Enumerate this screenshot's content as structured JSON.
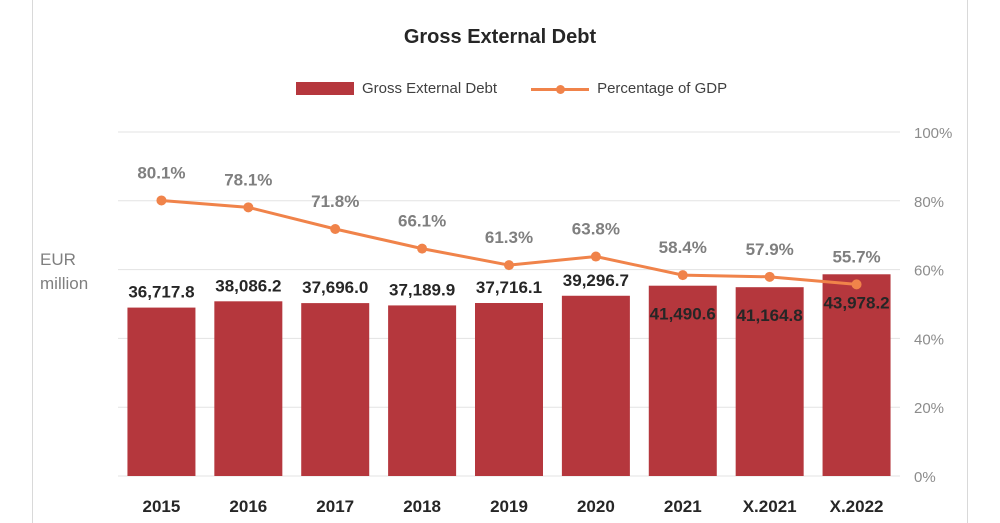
{
  "chart_data": {
    "type": "bar",
    "title": "Gross External Debt",
    "y_unit_label": "EUR million",
    "categories": [
      "2015",
      "2016",
      "2017",
      "2018",
      "2019",
      "2020",
      "2021",
      "X.2021",
      "X.2022"
    ],
    "series": [
      {
        "name": "Gross External Debt",
        "type": "bar",
        "color": "#b5373d",
        "values": [
          36717.8,
          38086.2,
          37696.0,
          37189.9,
          37716.1,
          39296.7,
          41490.6,
          41164.8,
          43978.2
        ],
        "labels": [
          "36,717.8",
          "38,086.2",
          "37,696.0",
          "37,189.9",
          "37,716.1",
          "39,296.7",
          "41,490.6",
          "41,164.8",
          "43,978.2"
        ]
      },
      {
        "name": "Percentage of GDP",
        "type": "line",
        "color": "#f0834a",
        "values": [
          80.1,
          78.1,
          71.8,
          66.1,
          61.3,
          63.8,
          58.4,
          57.9,
          55.7
        ],
        "labels": [
          "80.1%",
          "78.1%",
          "71.8%",
          "66.1%",
          "61.3%",
          "63.8%",
          "58.4%",
          "57.9%",
          "55.7%"
        ]
      }
    ],
    "secondary_axis": {
      "ylim": [
        0,
        100
      ],
      "ticks": [
        "0%",
        "20%",
        "40%",
        "60%",
        "80%",
        "100%"
      ]
    },
    "bar_axis_max": 75000,
    "grid": true,
    "legend_position": "top"
  }
}
